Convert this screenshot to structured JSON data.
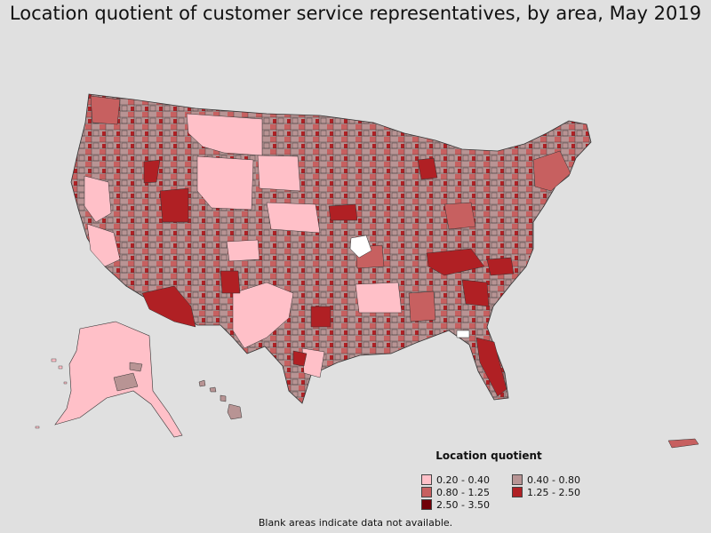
{
  "title": "Location quotient of customer service representatives, by area, May 2019",
  "legend": {
    "title": "Location quotient",
    "items": [
      {
        "label": "0.20 - 0.40",
        "color": "#ffc0c8"
      },
      {
        "label": "0.40 - 0.80",
        "color": "#b89494"
      },
      {
        "label": "0.80 - 1.25",
        "color": "#c76060"
      },
      {
        "label": "1.25 - 2.50",
        "color": "#b02024"
      },
      {
        "label": "2.50 - 3.50",
        "color": "#700008"
      }
    ]
  },
  "footnote": "Blank areas indicate data not available.",
  "colors": {
    "background": "#e0e0e0",
    "no_data": "#ffffff",
    "border": "#333333"
  }
}
